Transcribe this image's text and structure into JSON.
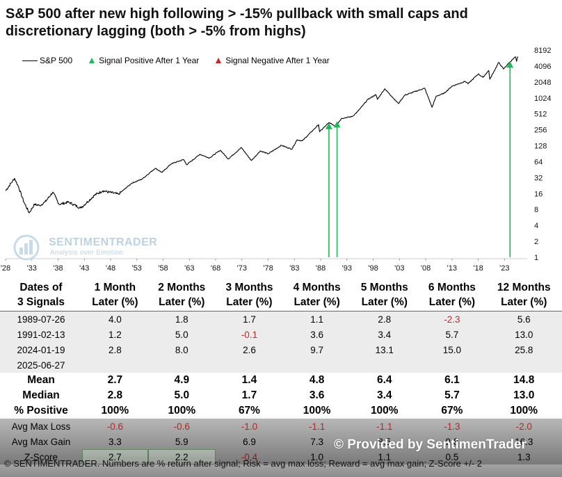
{
  "title": "S&P 500 after new high following > -15% pullback with small caps and discretionary lagging (both > -5% from highs)",
  "legend": {
    "series": "S&P 500",
    "positive": "Signal Positive After 1 Year",
    "negative": "Signal Negative After 1 Year"
  },
  "watermark": {
    "main": "SENTIMENTRADER",
    "sub": "Analysis over Emotion"
  },
  "chart_data": {
    "type": "line",
    "scale": "log2",
    "ylim": [
      1,
      8192
    ],
    "yticks": [
      1,
      2,
      4,
      8,
      16,
      32,
      64,
      128,
      256,
      512,
      1024,
      2048,
      4096,
      8192
    ],
    "ytick_labels": [
      "1",
      "2",
      "4",
      "8",
      "16",
      "32",
      "64",
      "128",
      "256",
      "512",
      "1024",
      "2048",
      "4096",
      "8192"
    ],
    "xlim": [
      1928,
      2026
    ],
    "xticks": [
      1928,
      1933,
      1938,
      1943,
      1948,
      1953,
      1958,
      1963,
      1968,
      1973,
      1978,
      1983,
      1988,
      1993,
      1998,
      2003,
      2008,
      2013,
      2018,
      2023
    ],
    "xtick_labels": [
      "'28",
      "'33",
      "'38",
      "'43",
      "'48",
      "'53",
      "'58",
      "'63",
      "'68",
      "'73",
      "'78",
      "'83",
      "'88",
      "'93",
      "'98",
      "'03",
      "'08",
      "'13",
      "'18",
      "'23"
    ],
    "series": [
      {
        "name": "S&P 500",
        "x": [
          1928,
          1929.7,
          1930.5,
          1931.5,
          1932.5,
          1933.5,
          1934.5,
          1935.5,
          1937,
          1938.2,
          1940,
          1942.3,
          1945,
          1946.5,
          1949.5,
          1952,
          1954,
          1956.5,
          1957.8,
          1959.5,
          1961.9,
          1962.5,
          1965,
          1966.8,
          1968.9,
          1970.4,
          1972.9,
          1974.8,
          1976.5,
          1978,
          1980.5,
          1982.5,
          1983.5,
          1984.5,
          1987.6,
          1987.8,
          1989.6,
          1990.8,
          1992,
          1994,
          1995,
          1997,
          1998.5,
          1998.8,
          2000.2,
          2001.5,
          2002.8,
          2004,
          2007.8,
          2009.2,
          2010,
          2011.5,
          2013,
          2015.5,
          2016.1,
          2018,
          2018.9,
          2020,
          2020.2,
          2021.9,
          2022.8,
          2024,
          2025.1,
          2025.3,
          2025.5
        ],
        "y": [
          18,
          31,
          21,
          11,
          6.9,
          10,
          9.5,
          11,
          17,
          10,
          11,
          8.5,
          15,
          18,
          15.5,
          25,
          30,
          48,
          40,
          58,
          70,
          56,
          88,
          75,
          105,
          72,
          118,
          67,
          102,
          90,
          130,
          110,
          165,
          158,
          320,
          235,
          350,
          300,
          420,
          455,
          560,
          960,
          1180,
          960,
          1520,
          1100,
          800,
          1150,
          1560,
          680,
          1100,
          1250,
          1700,
          2100,
          1900,
          2900,
          2500,
          3380,
          2300,
          4790,
          3600,
          4840,
          6100,
          5000,
          6200
        ]
      }
    ],
    "signals": [
      {
        "date": "1989-07-26",
        "x": 1989.57,
        "y": 335,
        "outcome": "positive"
      },
      {
        "date": "1991-02-13",
        "x": 1991.12,
        "y": 360,
        "outcome": "positive"
      },
      {
        "date": "2024-01-19",
        "x": 2024.05,
        "y": 4840,
        "outcome": "positive"
      }
    ],
    "colors": {
      "line": "#000000",
      "positive": "#1db954",
      "negative": "#cc2222"
    }
  },
  "table": {
    "headers": [
      [
        "Dates of",
        "3 Signals"
      ],
      [
        "1 Month",
        "Later (%)"
      ],
      [
        "2 Months",
        "Later (%)"
      ],
      [
        "3 Months",
        "Later (%)"
      ],
      [
        "4 Months",
        "Later (%)"
      ],
      [
        "5 Months",
        "Later (%)"
      ],
      [
        "6 Months",
        "Later (%)"
      ],
      [
        "12 Months",
        "Later (%)"
      ]
    ],
    "rows": [
      {
        "date": "1989-07-26",
        "values": [
          "4.0",
          "1.8",
          "1.7",
          "1.1",
          "2.8",
          "-2.3",
          "5.6"
        ]
      },
      {
        "date": "1991-02-13",
        "values": [
          "1.2",
          "5.0",
          "-0.1",
          "3.6",
          "3.4",
          "5.7",
          "13.0"
        ]
      },
      {
        "date": "2024-01-19",
        "values": [
          "2.8",
          "8.0",
          "2.6",
          "9.7",
          "13.1",
          "15.0",
          "25.8"
        ]
      },
      {
        "date": "2025-06-27",
        "values": [
          "",
          "",
          "",
          "",
          "",
          "",
          ""
        ]
      }
    ],
    "summary": [
      {
        "label": "Mean",
        "values": [
          "2.7",
          "4.9",
          "1.4",
          "4.8",
          "6.4",
          "6.1",
          "14.8"
        ]
      },
      {
        "label": "Median",
        "values": [
          "2.8",
          "5.0",
          "1.7",
          "3.6",
          "3.4",
          "5.7",
          "13.0"
        ]
      },
      {
        "label": "% Positive",
        "values": [
          "100%",
          "100%",
          "67%",
          "100%",
          "100%",
          "67%",
          "100%"
        ]
      }
    ],
    "risk": [
      {
        "label": "Avg Max Loss",
        "values": [
          "-0.6",
          "-0.6",
          "-1.0",
          "-1.1",
          "-1.1",
          "-1.3",
          "-2.0"
        ]
      },
      {
        "label": "Avg Max Gain",
        "values": [
          "3.3",
          "5.9",
          "6.9",
          "7.3",
          "8.5",
          "9.8",
          "16.3"
        ]
      },
      {
        "label": "Z-Score",
        "values": [
          "2.7",
          "2.2",
          "-0.4",
          "1.0",
          "1.1",
          "0.5",
          "1.3"
        ]
      }
    ]
  },
  "provided_by": "© Provided by SentimenTrader",
  "footer": "© SENTIMENTRADER. Numbers are % return after signal; Risk = avg max loss; Reward = avg max gain; Z-Score +/- 2"
}
